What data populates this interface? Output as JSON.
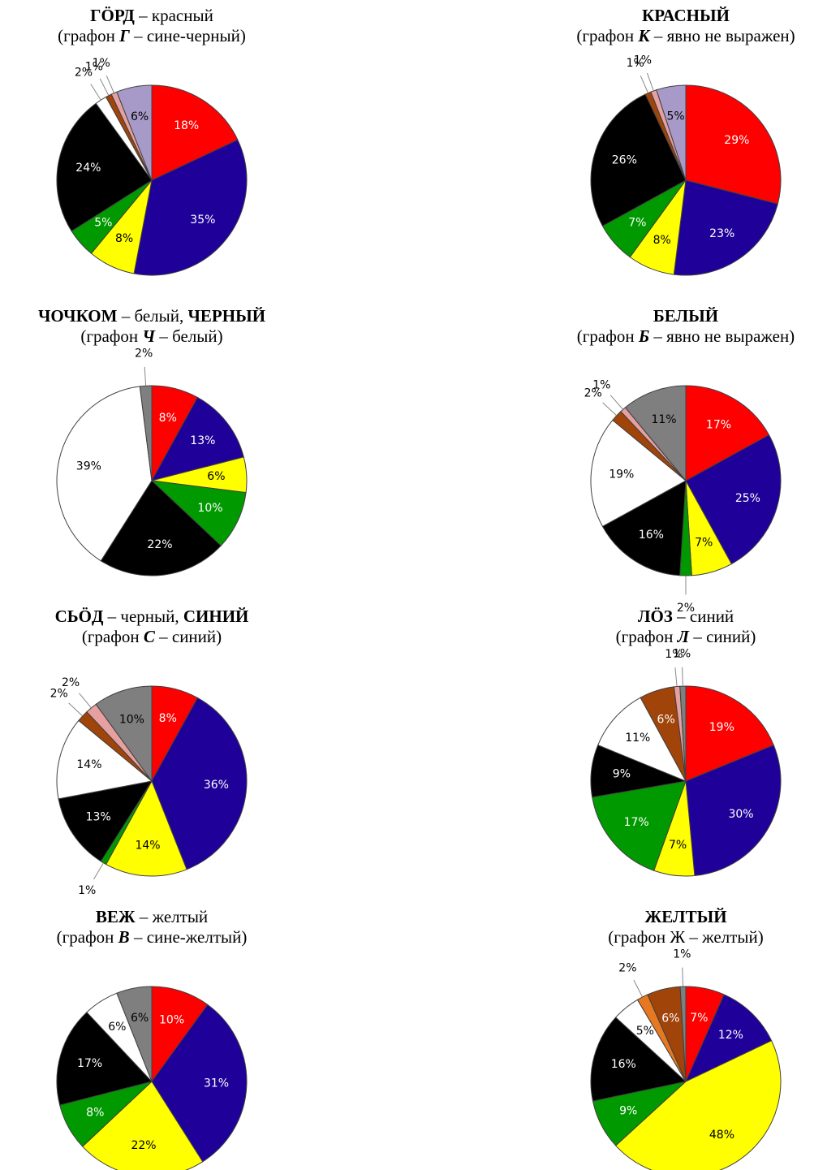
{
  "chart_data": [
    {
      "type": "pie",
      "title": [
        {
          "text": "ГÖРД",
          "bold": true
        },
        {
          "text": " – красный"
        }
      ],
      "subtitle": [
        {
          "text": "(графон "
        },
        {
          "text": "Г",
          "bold": true,
          "italic": true
        },
        {
          "text": " – сине-черный)"
        }
      ],
      "values": [
        18,
        35,
        8,
        5,
        24,
        2,
        1,
        1,
        6
      ],
      "value_labels": [
        "18%",
        "35%",
        "8%",
        "5%",
        "24%",
        "2%",
        "1%",
        "1%",
        "6%"
      ],
      "colors": [
        "#ff0000",
        "#1f0099",
        "#ffff00",
        "#009900",
        "#000000",
        "#ffffff",
        "#a0440a",
        "#e6a0a0",
        "#a89ac8"
      ]
    },
    {
      "type": "pie",
      "title": [
        {
          "text": "КРАСНЫЙ",
          "bold": true
        }
      ],
      "subtitle": [
        {
          "text": "(графон "
        },
        {
          "text": "К",
          "bold": true,
          "italic": true
        },
        {
          "text": " – явно не выражен)"
        }
      ],
      "values": [
        29,
        23,
        8,
        7,
        26,
        1,
        1,
        5
      ],
      "value_labels": [
        "29%",
        "23%",
        "8%",
        "7%",
        "26%",
        "1%",
        "1%",
        "5%"
      ],
      "colors": [
        "#ff0000",
        "#1f0099",
        "#ffff00",
        "#009900",
        "#000000",
        "#a0440a",
        "#e6a0a0",
        "#a89ac8"
      ]
    },
    {
      "type": "pie",
      "title": [
        {
          "text": "ЧОЧКОМ",
          "bold": true
        },
        {
          "text": " – белый, "
        },
        {
          "text": "ЧЕРНЫЙ",
          "bold": true
        }
      ],
      "subtitle": [
        {
          "text": "(графон "
        },
        {
          "text": "Ч",
          "bold": true,
          "italic": true
        },
        {
          "text": " – белый)"
        }
      ],
      "values": [
        8,
        13,
        6,
        10,
        22,
        39,
        2
      ],
      "value_labels": [
        "8%",
        "13%",
        "6%",
        "10%",
        "22%",
        "39%",
        "2%"
      ],
      "colors": [
        "#ff0000",
        "#1f0099",
        "#ffff00",
        "#009900",
        "#000000",
        "#ffffff",
        "#7f7f7f"
      ]
    },
    {
      "type": "pie",
      "title": [
        {
          "text": "БЕЛЫЙ",
          "bold": true
        }
      ],
      "subtitle": [
        {
          "text": "(графон "
        },
        {
          "text": "Б",
          "bold": true,
          "italic": true
        },
        {
          "text": " – явно не выражен)"
        }
      ],
      "values": [
        17,
        25,
        7,
        2,
        16,
        19,
        2,
        1,
        11
      ],
      "value_labels": [
        "17%",
        "25%",
        "7%",
        "2%",
        "16%",
        "19%",
        "2%",
        "1%",
        "11%"
      ],
      "colors": [
        "#ff0000",
        "#1f0099",
        "#ffff00",
        "#009900",
        "#000000",
        "#ffffff",
        "#a0440a",
        "#e6a0a0",
        "#7f7f7f"
      ]
    },
    {
      "type": "pie",
      "title": [
        {
          "text": "СЬÖД",
          "bold": true
        },
        {
          "text": " – черный, "
        },
        {
          "text": "СИНИЙ",
          "bold": true
        }
      ],
      "subtitle": [
        {
          "text": "(графон "
        },
        {
          "text": "С",
          "bold": true,
          "italic": true
        },
        {
          "text": " – синий)"
        }
      ],
      "values": [
        8,
        36,
        14,
        1,
        13,
        14,
        2,
        2,
        10
      ],
      "value_labels": [
        "8%",
        "36%",
        "14%",
        "1%",
        "13%",
        "14%",
        "2%",
        "2%",
        "10%"
      ],
      "colors": [
        "#ff0000",
        "#1f0099",
        "#ffff00",
        "#009900",
        "#000000",
        "#ffffff",
        "#a0440a",
        "#e6a0a0",
        "#7f7f7f"
      ]
    },
    {
      "type": "pie",
      "title": [
        {
          "text": "ЛÖЗ",
          "bold": true
        },
        {
          "text": " – синий"
        }
      ],
      "subtitle": [
        {
          "text": "(графон "
        },
        {
          "text": "Л",
          "bold": true,
          "italic": true
        },
        {
          "text": " – синий)"
        }
      ],
      "values": [
        19,
        30,
        7,
        17,
        9,
        11,
        6,
        1,
        1
      ],
      "value_labels": [
        "19%",
        "30%",
        "7%",
        "17%",
        "9%",
        "11%",
        "6%",
        "1%",
        "1%"
      ],
      "colors": [
        "#ff0000",
        "#1f0099",
        "#ffff00",
        "#009900",
        "#000000",
        "#ffffff",
        "#a0440a",
        "#e6a0a0",
        "#7f7f7f"
      ]
    },
    {
      "type": "pie",
      "title": [
        {
          "text": "ВЕЖ",
          "bold": true
        },
        {
          "text": " – желтый"
        }
      ],
      "subtitle": [
        {
          "text": "(графон "
        },
        {
          "text": "В",
          "bold": true,
          "italic": true
        },
        {
          "text": " – сине-желтый)"
        }
      ],
      "values": [
        10,
        31,
        22,
        8,
        17,
        6,
        6
      ],
      "value_labels": [
        "10%",
        "31%",
        "22%",
        "8%",
        "17%",
        "6%",
        "6%"
      ],
      "colors": [
        "#ff0000",
        "#1f0099",
        "#ffff00",
        "#009900",
        "#000000",
        "#ffffff",
        "#7f7f7f"
      ]
    },
    {
      "type": "pie",
      "title": [
        {
          "text": "ЖЕЛТЫЙ",
          "bold": true
        }
      ],
      "subtitle": [
        {
          "text": "(графон Ж – желтый)"
        }
      ],
      "values": [
        7,
        12,
        48,
        9,
        16,
        5,
        2,
        6,
        1
      ],
      "value_labels": [
        "7%",
        "12%",
        "48%",
        "9%",
        "16%",
        "5%",
        "2%",
        "6%",
        "1%"
      ],
      "colors": [
        "#ff0000",
        "#1f0099",
        "#ffff00",
        "#009900",
        "#000000",
        "#ffffff",
        "#e87820",
        "#a0440a",
        "#7f7f7f"
      ]
    }
  ]
}
